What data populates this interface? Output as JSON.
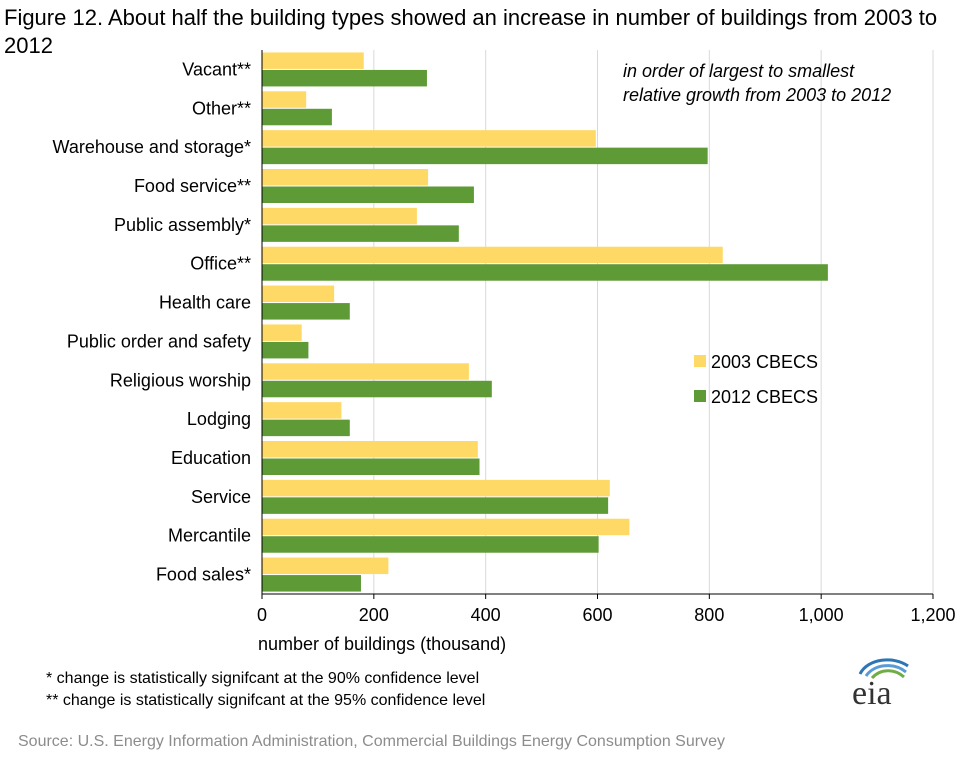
{
  "title": "Figure 12. About half the building types showed an increase in number of buildings from 2003 to 2012",
  "footnotes": [
    "* change is statistically signifcant at the 90% confidence level",
    "** change is statistically signifcant at the 95% confidence level"
  ],
  "source": "Source: U.S. Energy Information Administration, Commercial Buildings Energy Consumption Survey",
  "logo_text": "eia",
  "colors": {
    "series_2003": "#ffd966",
    "series_2012": "#5e9a35",
    "grid": "#d9d9d9",
    "axis": "#000000"
  },
  "chart_data": {
    "type": "bar",
    "orientation": "horizontal",
    "title": "Figure 12. About half the building types showed an increase in number of buildings from 2003 to 2012",
    "annotation": [
      "in order of largest to smallest",
      "relative growth from 2003 to 2012"
    ],
    "xlabel": "number of buildings (thousand)",
    "ylabel": "",
    "xlim": [
      0,
      1200
    ],
    "xticks": [
      0,
      200,
      400,
      600,
      800,
      1000,
      1200
    ],
    "xtick_labels": [
      "0",
      "200",
      "400",
      "600",
      "800",
      "1,000",
      "1,200"
    ],
    "grid": "vertical",
    "legend_position": "right",
    "categories": [
      "Vacant**",
      "Other**",
      "Warehouse and storage*",
      "Food service**",
      "Public assembly*",
      "Office**",
      "Health care",
      "Public order and safety",
      "Religious worship",
      "Lodging",
      "Education",
      "Service",
      "Mercantile",
      "Food sales*"
    ],
    "series": [
      {
        "name": "2003 CBECS",
        "color": "#ffd966",
        "values": [
          182,
          79,
          597,
          297,
          277,
          824,
          129,
          71,
          370,
          142,
          386,
          622,
          657,
          226
        ]
      },
      {
        "name": "2012 CBECS",
        "color": "#5e9a35",
        "values": [
          295,
          125,
          797,
          379,
          352,
          1012,
          157,
          83,
          411,
          157,
          389,
          619,
          602,
          177
        ]
      }
    ]
  }
}
